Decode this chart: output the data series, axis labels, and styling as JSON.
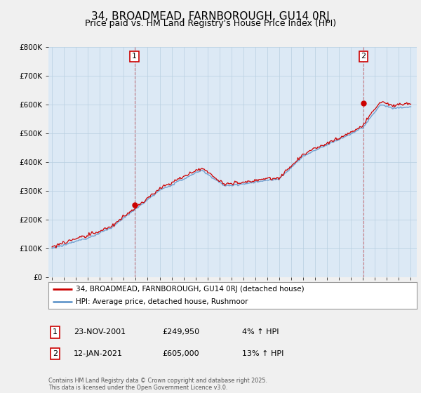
{
  "title": "34, BROADMEAD, FARNBOROUGH, GU14 0RJ",
  "subtitle": "Price paid vs. HM Land Registry's House Price Index (HPI)",
  "ylim": [
    0,
    800000
  ],
  "yticks": [
    0,
    100000,
    200000,
    300000,
    400000,
    500000,
    600000,
    700000,
    800000
  ],
  "ytick_labels": [
    "£0",
    "£100K",
    "£200K",
    "£300K",
    "£400K",
    "£500K",
    "£600K",
    "£700K",
    "£800K"
  ],
  "sale1_date": 2001.9,
  "sale1_price": 249950,
  "sale1_label": "1",
  "sale2_date": 2021.04,
  "sale2_price": 605000,
  "sale2_label": "2",
  "sale_color": "#cc0000",
  "hpi_color": "#6699cc",
  "vline_color": "#cc0000",
  "vline_alpha": 0.45,
  "legend_line1": "34, BROADMEAD, FARNBOROUGH, GU14 0RJ (detached house)",
  "legend_line2": "HPI: Average price, detached house, Rushmoor",
  "annotation1_box": "1",
  "annotation1_date": "23-NOV-2001",
  "annotation1_price": "£249,950",
  "annotation1_hpi": "4% ↑ HPI",
  "annotation2_box": "2",
  "annotation2_date": "12-JAN-2021",
  "annotation2_price": "£605,000",
  "annotation2_hpi": "13% ↑ HPI",
  "footer": "Contains HM Land Registry data © Crown copyright and database right 2025.\nThis data is licensed under the Open Government Licence v3.0.",
  "background_color": "#f0f0f0",
  "plot_bg_color": "#dce9f5",
  "grid_color": "#b8cfe0",
  "title_fontsize": 11,
  "subtitle_fontsize": 9
}
